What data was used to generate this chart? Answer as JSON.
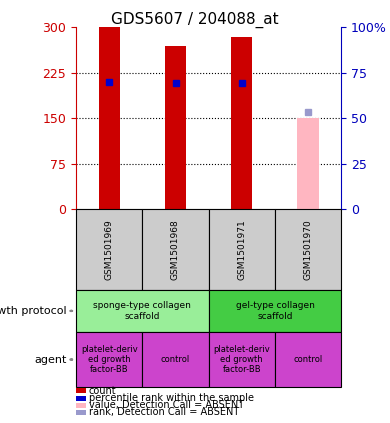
{
  "title": "GDS5607 / 204088_at",
  "samples": [
    "GSM1501969",
    "GSM1501968",
    "GSM1501971",
    "GSM1501970"
  ],
  "bar_values": [
    300,
    270,
    285,
    150
  ],
  "bar_colors": [
    "#cc0000",
    "#cc0000",
    "#cc0000",
    "#ffb6c1"
  ],
  "rank_values": [
    210,
    208,
    208,
    160
  ],
  "rank_colors": [
    "#0000cc",
    "#0000cc",
    "#0000cc",
    "#9999cc"
  ],
  "ylim_left": [
    0,
    300
  ],
  "ylim_right": [
    0,
    100
  ],
  "yticks_left": [
    0,
    75,
    150,
    225,
    300
  ],
  "yticks_right": [
    0,
    25,
    50,
    75,
    100
  ],
  "growth_protocol": [
    {
      "label": "sponge-type collagen\nscaffold",
      "cols": [
        0,
        1
      ],
      "color": "#99ee99"
    },
    {
      "label": "gel-type collagen\nscaffold",
      "cols": [
        2,
        3
      ],
      "color": "#44cc44"
    }
  ],
  "agent": [
    {
      "label": "platelet-deriv\ned growth\nfactor-BB",
      "col": 0,
      "color": "#cc44cc"
    },
    {
      "label": "control",
      "col": 1,
      "color": "#cc44cc"
    },
    {
      "label": "platelet-deriv\ned growth\nfactor-BB",
      "col": 2,
      "color": "#cc44cc"
    },
    {
      "label": "control",
      "col": 3,
      "color": "#cc44cc"
    }
  ],
  "legend_items": [
    {
      "color": "#cc0000",
      "label": "count"
    },
    {
      "color": "#0000cc",
      "label": "percentile rank within the sample"
    },
    {
      "color": "#ffb6c1",
      "label": "value, Detection Call = ABSENT"
    },
    {
      "color": "#9999cc",
      "label": "rank, Detection Call = ABSENT"
    }
  ],
  "left_axis_color": "#cc0000",
  "right_axis_color": "#0000bb",
  "sample_box_color": "#cccccc",
  "plot_bg": "#ffffff"
}
